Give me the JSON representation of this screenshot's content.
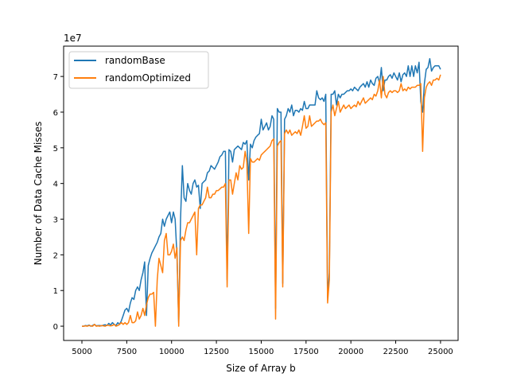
{
  "chart_data": {
    "type": "line",
    "title": "",
    "xlabel": "Size of Array b",
    "ylabel": "Number of Data Cache Misses",
    "y_offset_label": "1e7",
    "y_scale": 10000000,
    "xlim": [
      3980,
      25980
    ],
    "ylim": [
      -0.4,
      7.85
    ],
    "x_start": 5000,
    "x_step": 100,
    "xticks": [
      5000,
      7500,
      10000,
      12500,
      15000,
      17500,
      20000,
      22500,
      25000
    ],
    "xtick_labels": [
      "5000",
      "7500",
      "10000",
      "12500",
      "15000",
      "17500",
      "20000",
      "22500",
      "25000"
    ],
    "yticks": [
      0,
      1,
      2,
      3,
      4,
      5,
      6,
      7
    ],
    "ytick_labels": [
      "0",
      "1",
      "2",
      "3",
      "4",
      "5",
      "6",
      "7"
    ],
    "grid": false,
    "legend_position": "top-left",
    "series": [
      {
        "name": "randomBase",
        "color": "#1f77b4",
        "values": [
          0,
          0,
          0.02,
          0.01,
          0.03,
          0,
          0.02,
          0.05,
          0.01,
          0.02,
          0.02,
          0.01,
          0.03,
          0.04,
          0.02,
          0.08,
          0.03,
          0.1,
          0.05,
          0.02,
          0.1,
          0.05,
          0.15,
          0.3,
          0.45,
          0.5,
          0.4,
          0.65,
          0.8,
          0.75,
          1.0,
          1.1,
          1.0,
          1.3,
          1.5,
          1.8,
          0.3,
          1.7,
          1.9,
          2.05,
          2.15,
          2.25,
          2.35,
          2.5,
          2.6,
          3.0,
          2.8,
          3.0,
          3.1,
          3.2,
          2.9,
          3.2,
          3.0,
          2.0,
          0.1,
          3.0,
          4.5,
          3.6,
          3.5,
          4.0,
          3.8,
          3.7,
          4.0,
          4.1,
          3.9,
          3.95,
          3.3,
          4.0,
          4.05,
          4.1,
          4.3,
          4.35,
          4.5,
          4.45,
          4.4,
          4.5,
          4.6,
          4.75,
          4.8,
          4.9,
          4.9,
          1.3,
          4.95,
          4.9,
          4.6,
          4.95,
          5.0,
          5.05,
          5.0,
          4.95,
          5.15,
          5.1,
          5.2,
          4.1,
          5.1,
          5.0,
          5.2,
          5.3,
          5.35,
          5.4,
          5.8,
          5.5,
          5.6,
          5.7,
          5.5,
          5.6,
          5.9,
          5.8,
          0.5,
          6.1,
          6.0,
          6.0,
          1.2,
          5.8,
          5.9,
          6.1,
          6.0,
          6.2,
          5.9,
          6.05,
          6.05,
          6.0,
          6.1,
          6.05,
          6.3,
          6.1,
          6.1,
          6.2,
          6.2,
          6.2,
          6.2,
          6.6,
          6.4,
          6.35,
          6.4,
          6.3,
          6.5,
          0.8,
          1.5,
          6.5,
          6.5,
          6.6,
          6.2,
          6.5,
          6.4,
          6.5,
          6.5,
          6.55,
          6.6,
          6.6,
          6.65,
          6.6,
          6.7,
          6.65,
          6.6,
          6.7,
          6.75,
          6.8,
          6.7,
          6.85,
          6.7,
          6.9,
          6.8,
          6.75,
          6.95,
          7.0,
          6.8,
          7.25,
          6.6,
          6.9,
          6.9,
          7.0,
          7.05,
          6.95,
          7.1,
          7.0,
          6.9,
          7.1,
          6.85,
          7.05,
          7.1,
          7.0,
          7.3,
          7.0,
          7.3,
          7.0,
          7.3,
          7.1,
          7.4,
          6.3,
          6.0,
          6.8,
          7.2,
          7.25,
          7.5,
          7.15,
          7.25,
          7.3,
          7.3,
          7.3,
          7.2
        ]
      },
      {
        "name": "randomOptimized",
        "color": "#ff7f0e",
        "values": [
          0,
          0,
          0.01,
          0,
          0.02,
          0.01,
          0,
          0.05,
          0,
          0.01,
          0,
          0.02,
          0.01,
          0,
          0.03,
          0.02,
          0.01,
          0.02,
          0.05,
          0,
          0.02,
          0.05,
          0.1,
          0.05,
          0.1,
          0.05,
          0.1,
          0.3,
          0.1,
          0.1,
          0.15,
          0.4,
          0.2,
          0.3,
          0.5,
          0.3,
          0.6,
          0.8,
          0.9,
          0.9,
          0.95,
          0,
          1.3,
          1.9,
          1.7,
          1.5,
          2.4,
          2.6,
          2.0,
          2.0,
          2.1,
          2.3,
          1.9,
          2.2,
          0,
          2.4,
          2.5,
          2.4,
          2.7,
          2.9,
          2.9,
          3.0,
          3.1,
          3.2,
          2.0,
          3.3,
          3.4,
          3.4,
          3.5,
          3.6,
          3.9,
          3.6,
          3.6,
          3.7,
          3.7,
          3.8,
          3.8,
          3.85,
          3.9,
          3.9,
          4.0,
          1.1,
          4.1,
          4.1,
          3.7,
          4.0,
          4.3,
          4.1,
          4.5,
          4.4,
          4.45,
          4.9,
          4.6,
          2.6,
          4.7,
          4.6,
          4.6,
          4.65,
          4.7,
          4.65,
          4.8,
          4.85,
          4.9,
          4.95,
          5.0,
          5.05,
          5.2,
          5.25,
          0.2,
          5.05,
          5.15,
          5.2,
          1.1,
          5.4,
          5.5,
          5.4,
          5.5,
          5.35,
          5.4,
          5.45,
          5.4,
          5.5,
          5.35,
          5.6,
          5.9,
          5.55,
          5.6,
          5.9,
          5.6,
          5.65,
          5.7,
          5.75,
          5.75,
          5.8,
          5.7,
          5.65,
          5.7,
          0.65,
          1.3,
          6.0,
          6.2,
          5.9,
          6.1,
          6.3,
          6.0,
          6.1,
          6.2,
          6.1,
          6.15,
          6.2,
          6.1,
          6.15,
          6.2,
          6.15,
          6.3,
          6.2,
          6.3,
          6.4,
          6.25,
          6.3,
          6.35,
          6.4,
          6.35,
          6.5,
          6.45,
          6.6,
          6.9,
          6.4,
          7.0,
          6.5,
          6.4,
          6.55,
          6.6,
          6.55,
          6.6,
          6.6,
          6.55,
          6.6,
          6.8,
          6.6,
          6.65,
          6.6,
          6.7,
          6.65,
          6.7,
          6.7,
          6.7,
          6.75,
          6.75,
          6.8,
          4.9,
          6.4,
          6.7,
          6.8,
          6.85,
          6.75,
          6.9,
          6.9,
          6.95,
          6.9,
          7.05
        ]
      }
    ]
  }
}
